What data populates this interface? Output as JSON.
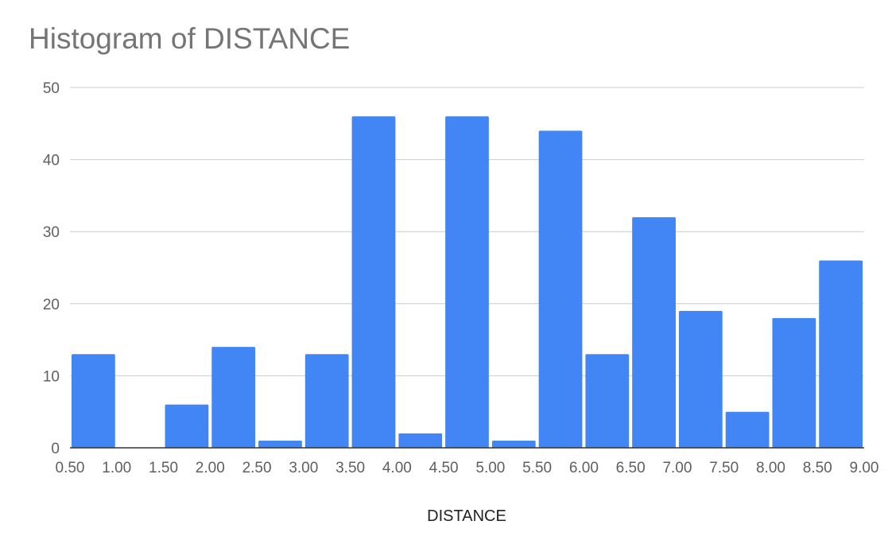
{
  "chart_data": {
    "type": "bar",
    "title": "Histogram of DISTANCE",
    "xlabel": "DISTANCE",
    "ylabel": "",
    "x_ticks": [
      "0.50",
      "1.00",
      "1.50",
      "2.00",
      "2.50",
      "3.00",
      "3.50",
      "4.00",
      "4.50",
      "5.00",
      "5.50",
      "6.00",
      "6.50",
      "7.00",
      "7.50",
      "8.00",
      "8.50",
      "9.00"
    ],
    "y_ticks": [
      "0",
      "10",
      "20",
      "30",
      "40",
      "50"
    ],
    "bin_edges": [
      0.5,
      1.0,
      1.5,
      2.0,
      2.5,
      3.0,
      3.5,
      4.0,
      4.5,
      5.0,
      5.5,
      6.0,
      6.5,
      7.0,
      7.5,
      8.0,
      8.5,
      9.0
    ],
    "values": [
      13,
      0,
      6,
      14,
      1,
      13,
      46,
      2,
      46,
      1,
      44,
      13,
      32,
      19,
      5,
      18,
      26
    ],
    "xlim": [
      0.5,
      9.0
    ],
    "ylim": [
      0,
      50
    ],
    "grid": true,
    "legend": "none",
    "bar_color": "#4285f4",
    "grid_color": "#cccccc",
    "axis_color": "#333333"
  }
}
